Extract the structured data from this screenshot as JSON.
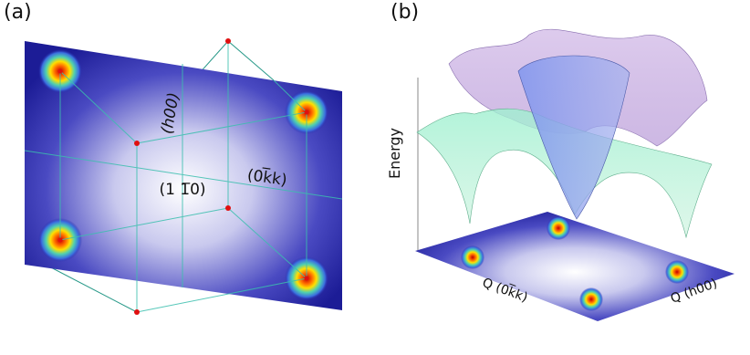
{
  "panels": [
    {
      "label": "(a)",
      "annotations": [
        "(h00)",
        "(1 1̅0)",
        "(0k̅k)"
      ]
    },
    {
      "label": "(b)",
      "axis_label": "Energy",
      "plane_labels": [
        "Q (0k̅k)",
        "Q (h00)"
      ]
    }
  ]
}
